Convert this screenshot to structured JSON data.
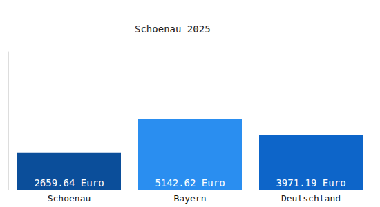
{
  "chart_data": {
    "type": "bar",
    "title": "Schoenau 2025",
    "categories": [
      "Schoenau",
      "Bayern",
      "Deutschland"
    ],
    "values": [
      2659.64,
      5142.62,
      3971.19
    ],
    "value_labels": [
      "2659.64 Euro",
      "5142.62 Euro",
      "3971.19 Euro"
    ],
    "colors": [
      "#0b4e9a",
      "#2a8ef0",
      "#0d65c9"
    ],
    "ylim": [
      0,
      10000
    ],
    "grid": false,
    "data_labels": true,
    "tick_labels": "x"
  }
}
